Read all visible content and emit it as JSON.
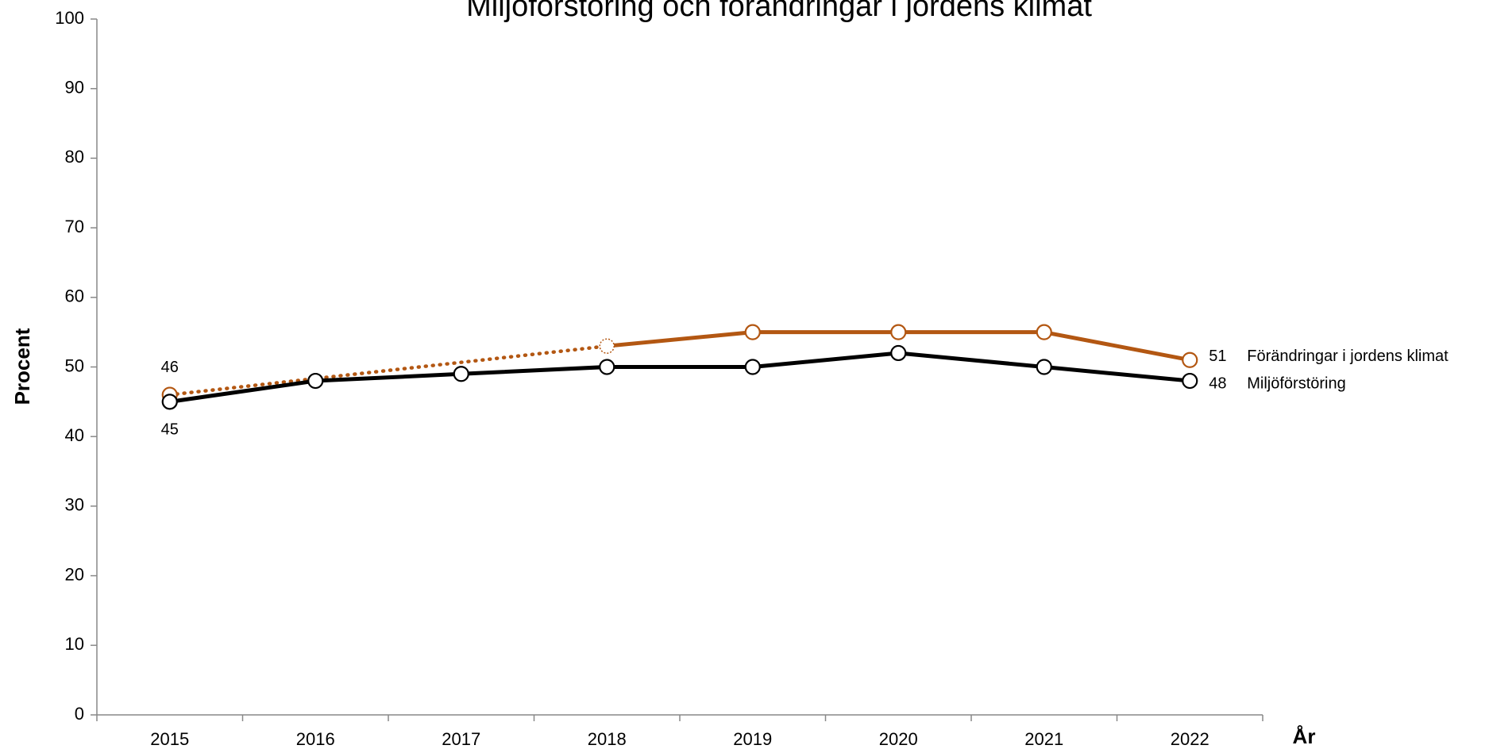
{
  "chart_data": {
    "type": "line",
    "title": "Miljöförstöring och förändringar i jordens klimat",
    "x_label": "År",
    "y_label": "Procent",
    "categories": [
      "2015",
      "2016",
      "2017",
      "2018",
      "2019",
      "2020",
      "2021",
      "2022"
    ],
    "series": [
      {
        "name": "Miljöförstöring",
        "color": "#000000",
        "values": [
          45,
          48,
          49,
          50,
          50,
          52,
          50,
          48
        ]
      },
      {
        "name": "Förändringar i jordens klimat",
        "color": "#b35712",
        "values": [
          46,
          null,
          null,
          53,
          55,
          55,
          55,
          51
        ]
      }
    ],
    "ylim": [
      0,
      100
    ],
    "yticks": [
      0,
      10,
      20,
      30,
      40,
      50,
      60,
      70,
      80,
      90,
      100
    ],
    "grid": false
  }
}
